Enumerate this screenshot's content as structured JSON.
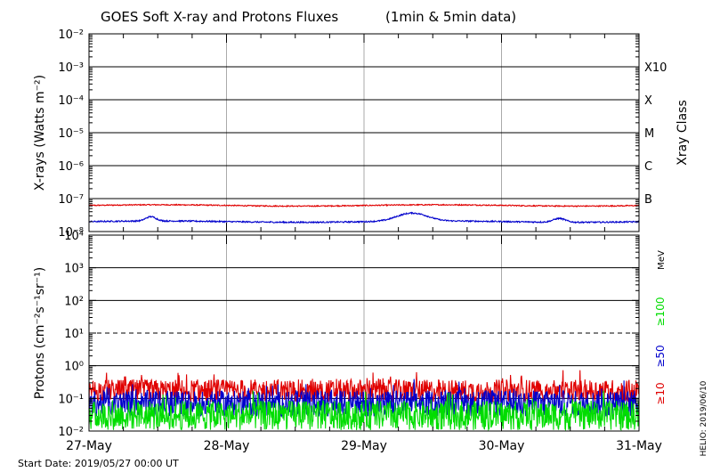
{
  "title": "GOES Soft X-ray and Protons Fluxes",
  "title_suffix": "(1min & 5min data)",
  "start_date_label": "Start Date: 2019/05/27 00:00 UT",
  "credit": "HELIO: 2019/06/10",
  "x_axis": {
    "ticks": [
      "27-May",
      "28-May",
      "29-May",
      "30-May",
      "31-May"
    ],
    "range": [
      0,
      4
    ]
  },
  "chart_data": [
    {
      "type": "line",
      "name": "xray-panel",
      "ylabel": "X-rays (Watts m⁻²)",
      "yscale": "log",
      "ylim_exp": [
        -8,
        -2
      ],
      "y_tick_exponents": [
        -8,
        -7,
        -6,
        -5,
        -4,
        -3,
        -2
      ],
      "right_label": "Xray Class",
      "class_labels": [
        {
          "text": "B",
          "exp": -7
        },
        {
          "text": "C",
          "exp": -6
        },
        {
          "text": "M",
          "exp": -5
        },
        {
          "text": "X",
          "exp": -4
        },
        {
          "text": "X10",
          "exp": -3
        }
      ],
      "series": [
        {
          "color": "#e00000",
          "base": 6.2e-08,
          "noise": 0.04,
          "features": []
        },
        {
          "color": "#0000cc",
          "base": 2e-08,
          "noise": 0.05,
          "features": [
            {
              "x": 0.45,
              "width": 0.05,
              "amp": 0.35
            },
            {
              "x": 2.35,
              "width": 0.14,
              "amp": 0.75
            },
            {
              "x": 3.42,
              "width": 0.06,
              "amp": 0.3
            }
          ]
        }
      ]
    },
    {
      "type": "line",
      "name": "proton-panel",
      "ylabel": "Protons (cm⁻²s⁻¹sr⁻¹)",
      "yscale": "log",
      "ylim_exp": [
        -2,
        4
      ],
      "y_tick_exponents": [
        -2,
        -1,
        0,
        1,
        2,
        3,
        4
      ],
      "threshold": 10,
      "unit_label": "MeV",
      "series": [
        {
          "label": "≥10",
          "color": "#e00000",
          "base": 0.17,
          "noise": 0.35
        },
        {
          "label": "≥50",
          "color": "#0000cc",
          "base": 0.07,
          "noise": 0.4
        },
        {
          "label": "≥100",
          "color": "#00dd00",
          "base": 0.03,
          "noise": 0.45
        }
      ]
    }
  ]
}
